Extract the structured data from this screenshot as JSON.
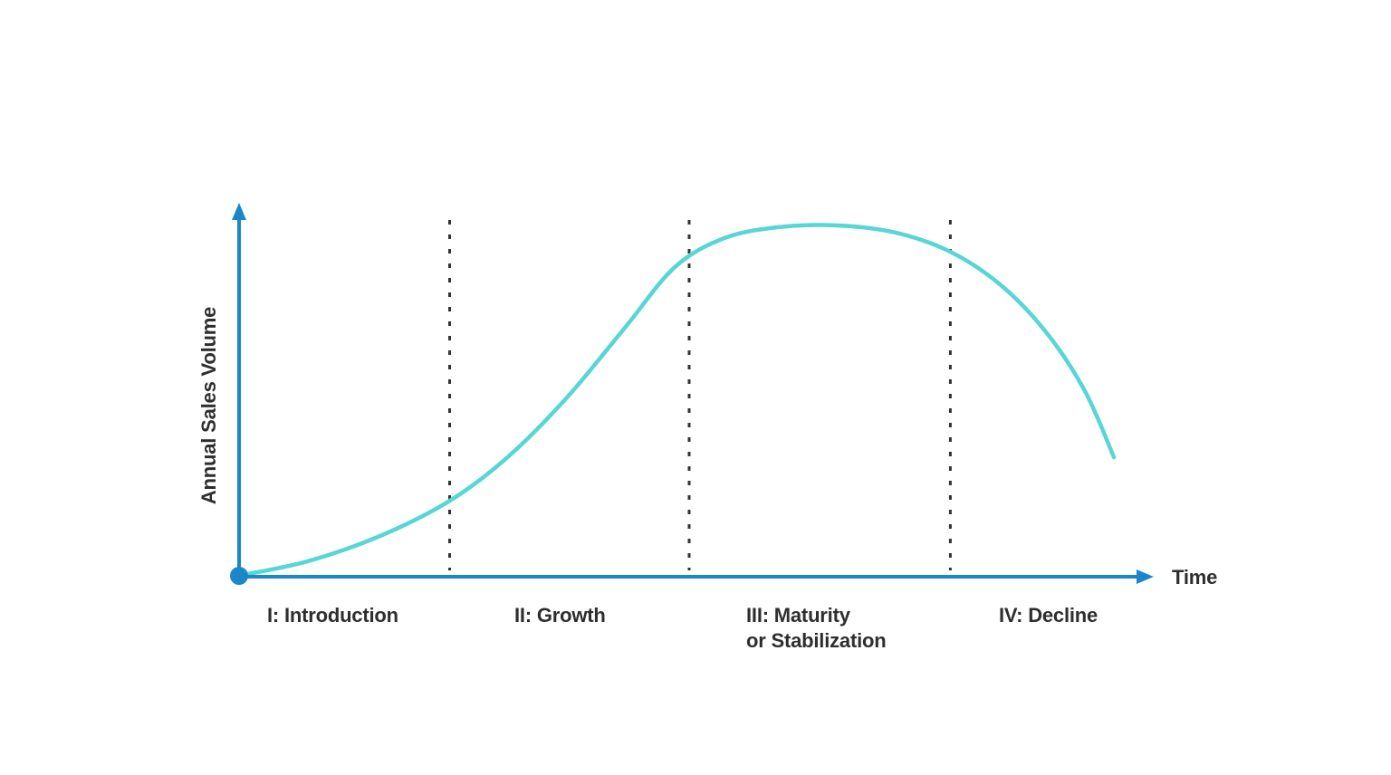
{
  "chart_data": {
    "type": "line",
    "title": "",
    "x_axis_label": "Time",
    "y_axis_label": "Annual Sales Volume",
    "axes_numeric": false,
    "xlim_normalized": [
      0,
      1
    ],
    "ylim_normalized": [
      0,
      1
    ],
    "grid": false,
    "legend": null,
    "phases": [
      {
        "numeral": "I",
        "lines": [
          "I: Introduction"
        ],
        "span_x": [
          0.0,
          0.233
        ]
      },
      {
        "numeral": "II",
        "lines": [
          "II: Growth"
        ],
        "span_x": [
          0.233,
          0.498
        ]
      },
      {
        "numeral": "III",
        "lines": [
          "III: Maturity",
          "or Stabilization"
        ],
        "span_x": [
          0.498,
          0.787
        ]
      },
      {
        "numeral": "IV",
        "lines": [
          "IV: Decline"
        ],
        "span_x": [
          0.787,
          1.0
        ]
      }
    ],
    "phase_dividers_x": [
      0.233,
      0.498,
      0.787
    ],
    "curve_points": [
      [
        0.0,
        0.003
      ],
      [
        0.076,
        0.044
      ],
      [
        0.156,
        0.116
      ],
      [
        0.233,
        0.216
      ],
      [
        0.297,
        0.34
      ],
      [
        0.362,
        0.508
      ],
      [
        0.427,
        0.709
      ],
      [
        0.482,
        0.881
      ],
      [
        0.537,
        0.964
      ],
      [
        0.597,
        0.995
      ],
      [
        0.662,
        1.0
      ],
      [
        0.727,
        0.979
      ],
      [
        0.787,
        0.925
      ],
      [
        0.843,
        0.83
      ],
      [
        0.893,
        0.696
      ],
      [
        0.936,
        0.528
      ],
      [
        0.968,
        0.34
      ]
    ],
    "curve_peak_x": 0.662,
    "colors": {
      "axis": "#1a87c8",
      "curve": "#56d6d6",
      "divider": "#333333",
      "text": "#2e2e2e",
      "background": "#ffffff"
    }
  }
}
